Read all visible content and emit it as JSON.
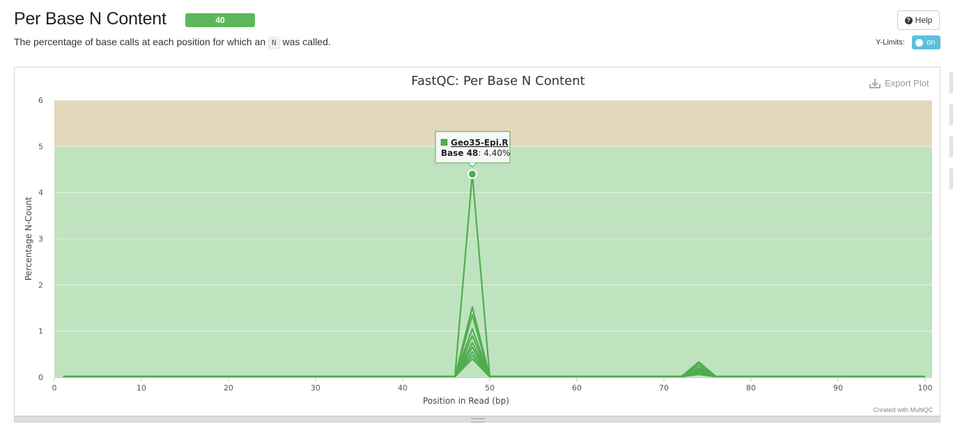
{
  "header": {
    "title": "Per Base N Content",
    "badge": "40",
    "subtitle_before": "The percentage of base calls at each position for which an ",
    "subtitle_code": "N",
    "subtitle_after": " was called.",
    "help_label": "Help",
    "ylimits_label": "Y-Limits:",
    "toggle_label": "on"
  },
  "plot": {
    "export_label": "Export Plot",
    "credit": "Created with MultiQC"
  },
  "tooltip": {
    "sample": "Geo35-Epi.R",
    "base_label": "Base 48",
    "value_text": ": 4.40%"
  },
  "colors": {
    "line": "#4fad4f",
    "good_band": "#bfe3bf",
    "warn_band": "#e3d7bb",
    "badge": "#5cb85c",
    "toggle": "#5bc0de"
  },
  "chart_data": {
    "type": "line",
    "title": "FastQC: Per Base N Content",
    "xlabel": "Position in Read (bp)",
    "ylabel": "Percentage N-Count",
    "xlim": [
      0,
      101
    ],
    "ylim": [
      0,
      6
    ],
    "x_ticks": [
      0,
      10,
      20,
      30,
      40,
      50,
      60,
      70,
      80,
      90,
      100
    ],
    "y_ticks": [
      0,
      1,
      2,
      3,
      4,
      5,
      6
    ],
    "grid": true,
    "bands": [
      {
        "from": 0,
        "to": 5,
        "color": "#bfe3bf"
      },
      {
        "from": 5,
        "to": 6,
        "color": "#e3d7bb"
      }
    ],
    "series": [
      {
        "x": [
          1,
          46,
          48,
          50,
          72,
          74,
          76,
          100
        ],
        "y": [
          0.02,
          0.02,
          4.4,
          0.02,
          0.02,
          0.3,
          0.02,
          0.02
        ]
      },
      {
        "x": [
          1,
          46,
          48,
          50,
          72,
          74,
          76,
          100
        ],
        "y": [
          0.01,
          0.01,
          1.52,
          0.01,
          0.01,
          0.33,
          0.01,
          0.01
        ]
      },
      {
        "x": [
          1,
          46,
          48,
          50,
          72,
          74,
          76,
          100
        ],
        "y": [
          0.01,
          0.01,
          1.35,
          0.01,
          0.01,
          0.25,
          0.01,
          0.01
        ]
      },
      {
        "x": [
          1,
          46,
          48,
          50,
          72,
          74,
          76,
          100
        ],
        "y": [
          0.01,
          0.01,
          1.05,
          0.01,
          0.01,
          0.2,
          0.01,
          0.01
        ]
      },
      {
        "x": [
          1,
          46,
          48,
          50,
          72,
          74,
          76,
          100
        ],
        "y": [
          0.01,
          0.01,
          0.9,
          0.01,
          0.01,
          0.18,
          0.01,
          0.01
        ]
      },
      {
        "x": [
          1,
          46,
          48,
          50,
          72,
          74,
          76,
          100
        ],
        "y": [
          0.01,
          0.01,
          0.75,
          0.01,
          0.01,
          0.15,
          0.01,
          0.01
        ]
      },
      {
        "x": [
          1,
          46,
          48,
          50,
          72,
          74,
          76,
          100
        ],
        "y": [
          0.01,
          0.01,
          0.65,
          0.01,
          0.01,
          0.12,
          0.01,
          0.01
        ]
      },
      {
        "x": [
          1,
          46,
          48,
          50,
          72,
          74,
          76,
          100
        ],
        "y": [
          0.01,
          0.01,
          0.55,
          0.01,
          0.01,
          0.1,
          0.01,
          0.01
        ]
      },
      {
        "x": [
          1,
          46,
          48,
          50,
          72,
          74,
          76,
          100
        ],
        "y": [
          0.01,
          0.01,
          0.47,
          0.01,
          0.01,
          0.08,
          0.01,
          0.01
        ]
      },
      {
        "x": [
          1,
          46,
          48,
          50,
          72,
          74,
          76,
          100
        ],
        "y": [
          0.01,
          0.01,
          0.4,
          0.01,
          0.01,
          0.06,
          0.01,
          0.01
        ]
      }
    ],
    "highlight": {
      "x": 48,
      "y": 4.4
    }
  }
}
